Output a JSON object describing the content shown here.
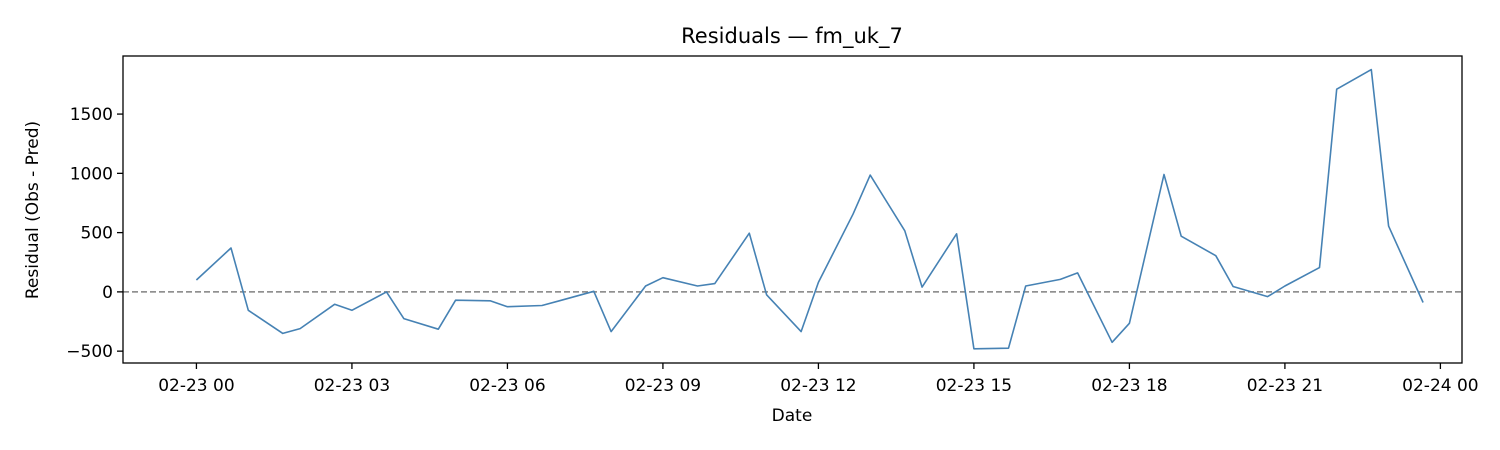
{
  "chart_data": {
    "type": "line",
    "title": "Residuals — fm_uk_7",
    "xlabel": "Date",
    "ylabel": "Residual (Obs - Pred)",
    "x_tick_labels": [
      "02-23 00",
      "02-23 03",
      "02-23 06",
      "02-23 09",
      "02-23 12",
      "02-23 15",
      "02-23 18",
      "02-23 21",
      "02-24 00"
    ],
    "x_ticks": [
      "2024-02-23 00:00",
      "2024-02-23 03:00",
      "2024-02-23 06:00",
      "2024-02-23 09:00",
      "2024-02-23 12:00",
      "2024-02-23 15:00",
      "2024-02-23 18:00",
      "2024-02-23 21:00",
      "2024-02-24 00:00"
    ],
    "y_ticks": [
      -500,
      0,
      500,
      1000,
      1500
    ],
    "y_tick_labels": [
      "−500",
      "0",
      "500",
      "1000",
      "1500"
    ],
    "xlim": [
      "2024-02-22 22:35",
      "2024-02-24 00:25"
    ],
    "ylim": [
      -600,
      1990
    ],
    "grid": false,
    "reference_line": {
      "y": 0,
      "style": "dashed",
      "color": "#808080"
    },
    "series": [
      {
        "color": "#4682b4",
        "x": [
          "2024-02-23 00:00",
          "2024-02-23 00:40",
          "2024-02-23 01:00",
          "2024-02-23 01:40",
          "2024-02-23 02:00",
          "2024-02-23 02:40",
          "2024-02-23 03:00",
          "2024-02-23 03:40",
          "2024-02-23 04:00",
          "2024-02-23 04:40",
          "2024-02-23 05:00",
          "2024-02-23 05:40",
          "2024-02-23 06:00",
          "2024-02-23 06:40",
          "2024-02-23 07:00",
          "2024-02-23 07:40",
          "2024-02-23 08:00",
          "2024-02-23 08:40",
          "2024-02-23 09:00",
          "2024-02-23 09:40",
          "2024-02-23 10:00",
          "2024-02-23 10:40",
          "2024-02-23 11:00",
          "2024-02-23 11:40",
          "2024-02-23 12:00",
          "2024-02-23 12:40",
          "2024-02-23 13:00",
          "2024-02-23 13:40",
          "2024-02-23 14:00",
          "2024-02-23 14:40",
          "2024-02-23 15:00",
          "2024-02-23 15:40",
          "2024-02-23 16:00",
          "2024-02-23 16:40",
          "2024-02-23 17:00",
          "2024-02-23 17:40",
          "2024-02-23 18:00",
          "2024-02-23 18:40",
          "2024-02-23 19:00",
          "2024-02-23 19:40",
          "2024-02-23 20:00",
          "2024-02-23 20:40",
          "2024-02-23 21:00",
          "2024-02-23 21:40",
          "2024-02-23 22:00",
          "2024-02-23 22:40",
          "2024-02-23 23:00",
          "2024-02-23 23:40"
        ],
        "y": [
          100,
          370,
          -155,
          -350,
          -310,
          -105,
          -155,
          0,
          -225,
          -315,
          -70,
          -75,
          -125,
          -115,
          -75,
          5,
          -335,
          50,
          120,
          50,
          70,
          495,
          -25,
          -335,
          80,
          655,
          985,
          515,
          40,
          490,
          -480,
          -475,
          50,
          105,
          160,
          -425,
          -265,
          990,
          470,
          305,
          45,
          -40,
          50,
          205,
          1710,
          1875,
          555,
          -90
        ]
      }
    ]
  }
}
